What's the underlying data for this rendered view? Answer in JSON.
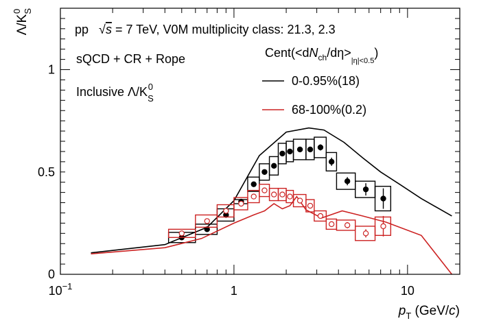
{
  "chart_data": {
    "type": "line",
    "xscale": "log",
    "xlim": [
      0.1,
      20
    ],
    "ylim": [
      0,
      1.3
    ],
    "xaxis": {
      "label_var": "p",
      "label_sub": "T",
      "label_units_pre": " (GeV/",
      "label_units_var": "c",
      "label_units_post": ")",
      "ticks": [
        {
          "value": 0.1,
          "base": "10",
          "exp": "−1"
        },
        {
          "value": 1,
          "label": "1"
        },
        {
          "value": 10,
          "label": "10"
        }
      ]
    },
    "yaxis": {
      "label_text": "Λ/K",
      "label_sub": "S",
      "label_sup": "0",
      "ticks": [
        {
          "value": 0,
          "label": "0"
        },
        {
          "value": 0.5,
          "label": "0.5"
        },
        {
          "value": 1,
          "label": "1"
        }
      ]
    },
    "annotations": {
      "line1_pp": "pp",
      "line1_sqrt": "√",
      "line1_s": "s",
      "line1_rest": " = 7 TeV, V0M multiplicity class: 21.3, 2.3",
      "line2": "sQCD + CR + Rope",
      "line3_text": "Inclusive Λ/K",
      "line3_sub": "S",
      "line3_sup": "0"
    },
    "legend": {
      "placement": "top-right",
      "header_a": "Cent(<d",
      "header_N": "N",
      "header_ch": "ch",
      "header_b": "/dη>",
      "header_eta": "|η|<0.5",
      "header_c": ")"
    },
    "series": [
      {
        "name": "0-0.95%(18)",
        "color": "#000000",
        "model_line": {
          "x": [
            0.15,
            0.4,
            0.7,
            1.0,
            1.4,
            2.0,
            2.7,
            3.3,
            4.3,
            5.5,
            7.0,
            9.0,
            12.0,
            18.0
          ],
          "y": [
            0.105,
            0.145,
            0.23,
            0.36,
            0.58,
            0.695,
            0.715,
            0.705,
            0.645,
            0.57,
            0.5,
            0.44,
            0.37,
            0.285
          ]
        },
        "points": {
          "x": [
            0.5,
            0.7,
            0.9,
            1.1,
            1.3,
            1.5,
            1.7,
            1.9,
            2.1,
            2.4,
            2.75,
            3.15,
            3.65,
            4.5,
            5.75,
            7.25
          ],
          "y": [
            0.18,
            0.22,
            0.29,
            0.355,
            0.44,
            0.5,
            0.53,
            0.59,
            0.6,
            0.61,
            0.61,
            0.62,
            0.55,
            0.455,
            0.415,
            0.37
          ],
          "stat_err": [
            0.01,
            0.01,
            0.01,
            0.01,
            0.01,
            0.01,
            0.01,
            0.01,
            0.01,
            0.01,
            0.01,
            0.015,
            0.02,
            0.02,
            0.03,
            0.05
          ],
          "sys_err": [
            0.025,
            0.025,
            0.03,
            0.01,
            0.035,
            0.04,
            0.045,
            0.05,
            0.05,
            0.05,
            0.05,
            0.05,
            0.045,
            0.04,
            0.04,
            0.06
          ],
          "box_lo": [
            0.42,
            0.6,
            0.8,
            1.0,
            1.2,
            1.4,
            1.6,
            1.8,
            2.0,
            2.2,
            2.6,
            2.9,
            3.4,
            3.9,
            5.0,
            6.5
          ],
          "box_hi": [
            0.6,
            0.8,
            1.0,
            1.2,
            1.4,
            1.6,
            1.8,
            2.0,
            2.2,
            2.6,
            2.9,
            3.4,
            3.9,
            5.0,
            6.5,
            8.0
          ],
          "marker": "filled-circle"
        }
      },
      {
        "name": "68-100%(0.2)",
        "color": "#cc2222",
        "model_line": {
          "x": [
            0.15,
            0.4,
            0.65,
            1.0,
            1.3,
            1.5,
            1.7,
            1.9,
            2.1,
            2.3,
            2.6,
            3.2,
            4.2,
            5.5,
            7.5,
            12.0,
            18.0
          ],
          "y": [
            0.1,
            0.13,
            0.175,
            0.25,
            0.29,
            0.31,
            0.345,
            0.32,
            0.335,
            0.38,
            0.315,
            0.275,
            0.31,
            0.285,
            0.255,
            0.19,
            0.0
          ]
        },
        "points": {
          "x": [
            0.5,
            0.7,
            0.9,
            1.1,
            1.3,
            1.5,
            1.7,
            1.9,
            2.1,
            2.4,
            2.75,
            3.15,
            3.65,
            4.5,
            5.75,
            7.25
          ],
          "y": [
            0.2,
            0.26,
            0.31,
            0.345,
            0.38,
            0.41,
            0.39,
            0.39,
            0.38,
            0.36,
            0.335,
            0.285,
            0.245,
            0.24,
            0.2,
            0.235
          ],
          "stat_err": [
            0.008,
            0.008,
            0.008,
            0.008,
            0.008,
            0.008,
            0.008,
            0.008,
            0.008,
            0.008,
            0.01,
            0.01,
            0.01,
            0.015,
            0.02,
            0.05
          ],
          "sys_err": [
            0.02,
            0.03,
            0.03,
            0.03,
            0.03,
            0.03,
            0.03,
            0.03,
            0.03,
            0.03,
            0.03,
            0.025,
            0.025,
            0.025,
            0.035,
            0.045
          ],
          "box_lo": [
            0.42,
            0.6,
            0.8,
            1.0,
            1.2,
            1.4,
            1.6,
            1.8,
            2.0,
            2.2,
            2.6,
            2.9,
            3.4,
            3.9,
            5.0,
            6.5
          ],
          "box_hi": [
            0.6,
            0.8,
            1.0,
            1.2,
            1.4,
            1.6,
            1.8,
            2.0,
            2.2,
            2.6,
            2.9,
            3.4,
            3.9,
            5.0,
            6.5,
            8.0
          ],
          "marker": "open-circle"
        }
      }
    ]
  }
}
